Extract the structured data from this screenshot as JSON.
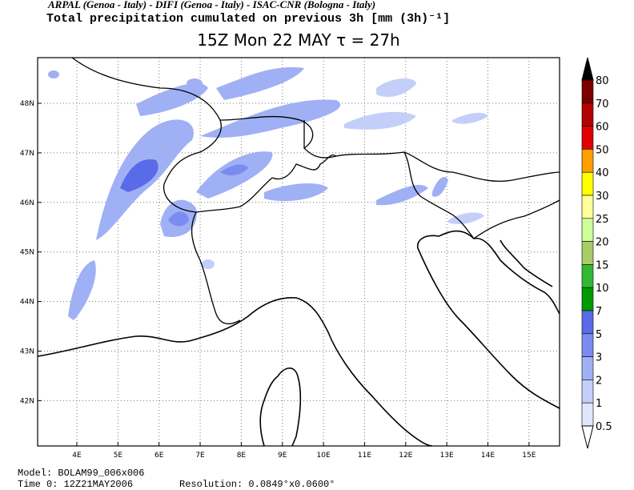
{
  "header": {
    "line1": "ARPAL (Genoa - Italy)  -  DIFI (Genoa - Italy)  -  ISAC-CNR (Bologna - Italy)",
    "line2": "Total precipitation cumulated on previous 3h [mm (3h)⁻¹]",
    "title": "15Z Mon 22 MAY  τ = 27h"
  },
  "map": {
    "lon_ticks": [
      "4E",
      "5E",
      "6E",
      "7E",
      "8E",
      "9E",
      "10E",
      "11E",
      "12E",
      "13E",
      "14E",
      "15E"
    ],
    "lat_ticks": [
      "48N",
      "47N",
      "46N",
      "45N",
      "44N",
      "43N",
      "42N"
    ]
  },
  "colorbar": {
    "labels": [
      "80",
      "70",
      "60",
      "50",
      "40",
      "30",
      "25",
      "20",
      "15",
      "10",
      "7",
      "5",
      "3",
      "2",
      "1",
      "0.5"
    ],
    "colors": [
      "#000000",
      "#7a0000",
      "#b30000",
      "#e00000",
      "#ff9f00",
      "#ffff00",
      "#ffff99",
      "#ccff99",
      "#a8cc66",
      "#33b833",
      "#009a00",
      "#5a6be8",
      "#7b8cf0",
      "#a0b0f5",
      "#c3cff9",
      "#e0e6fc",
      "#ffffff"
    ]
  },
  "footer": {
    "model": "Model: BOLAM99_006x006",
    "time0": "Time 0: 12Z21MAY2006",
    "resolution": "Resolution: 0.0849°x0.0600°"
  }
}
